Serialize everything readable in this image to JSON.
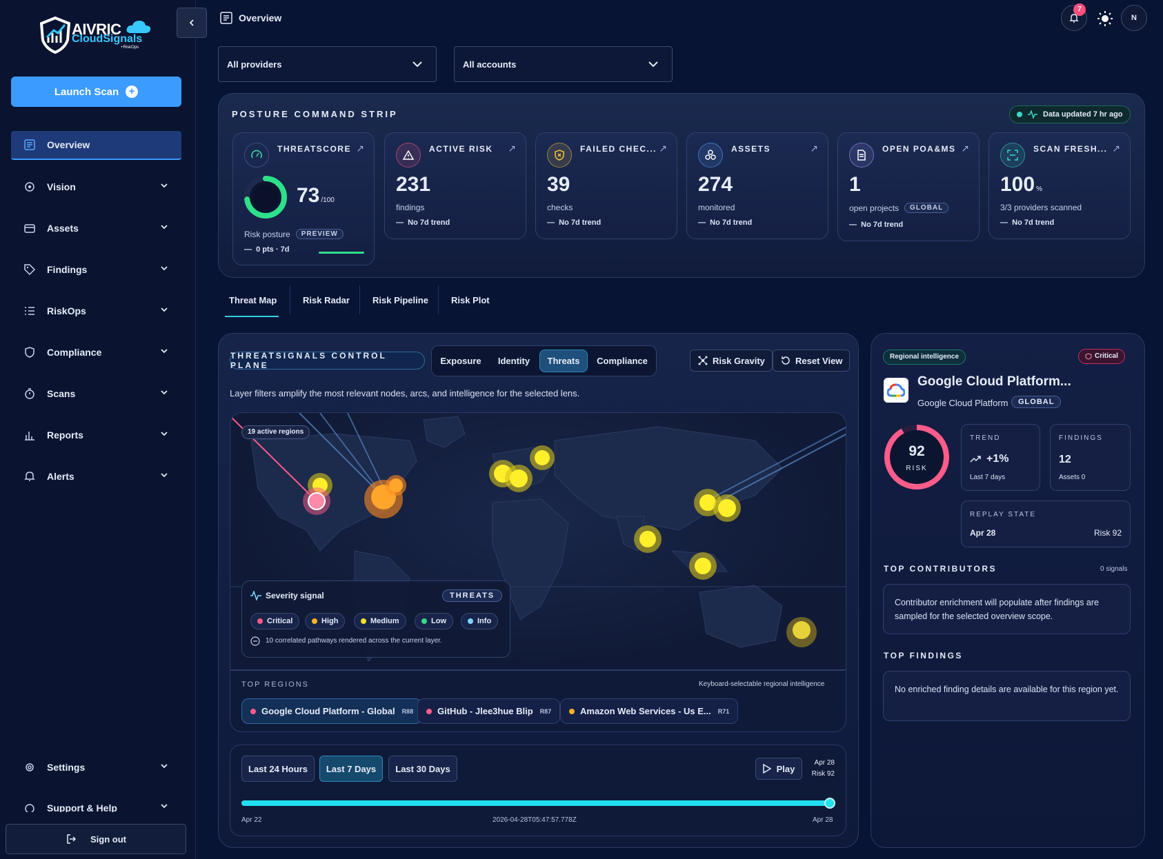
{
  "brand": {
    "name_top": "AIVRIC",
    "name_bottom": "CloudSignals",
    "tagline": "+RiskOps"
  },
  "sidebar": {
    "launch_label": "Launch Scan",
    "items": [
      {
        "label": "Overview",
        "icon": "overview-icon",
        "active": true
      },
      {
        "label": "Vision",
        "icon": "vision-icon"
      },
      {
        "label": "Assets",
        "icon": "assets-icon"
      },
      {
        "label": "Findings",
        "icon": "tag-icon"
      },
      {
        "label": "RiskOps",
        "icon": "list-icon"
      },
      {
        "label": "Compliance",
        "icon": "shield-icon"
      },
      {
        "label": "Scans",
        "icon": "timer-icon"
      },
      {
        "label": "Reports",
        "icon": "bar-chart-icon"
      },
      {
        "label": "Alerts",
        "icon": "bell-icon"
      }
    ],
    "settings_label": "Settings",
    "support_label": "Support & Help",
    "signout_label": "Sign out"
  },
  "header": {
    "page_title": "Overview",
    "notification_count": "7",
    "avatar_initial": "N"
  },
  "filters": {
    "providers": "All providers",
    "accounts": "All accounts"
  },
  "posture": {
    "title": "POSTURE COMMAND STRIP",
    "updated": "Data updated 7 hr ago",
    "threatscore": {
      "label": "THREATSCORE",
      "value": "73",
      "unit": "/100",
      "sub": "Risk posture",
      "pill": "PREVIEW",
      "trend": "0 pts · 7d",
      "score": 73
    },
    "cards": [
      {
        "label": "ACTIVE RISK",
        "value": "231",
        "sub": "findings",
        "trend": "No 7d trend",
        "icon": "warning-icon",
        "accent": "#ff5c8a"
      },
      {
        "label": "FAILED CHEC...",
        "value": "39",
        "sub": "checks",
        "trend": "No 7d trend",
        "icon": "shield-x-icon",
        "accent": "#f3c43a"
      },
      {
        "label": "ASSETS",
        "value": "274",
        "sub": "monitored",
        "trend": "No 7d trend",
        "icon": "cubes-icon",
        "accent": "#5aa8ff"
      },
      {
        "label": "OPEN POA&MS",
        "value": "1",
        "sub": "open projects",
        "pill": "GLOBAL",
        "trend": "No 7d trend",
        "icon": "document-icon",
        "accent": "#a59bff"
      },
      {
        "label": "SCAN FRESH...",
        "value": "100",
        "unit": "%",
        "sub": "3/3 providers scanned",
        "trend": "No 7d trend",
        "icon": "scan-icon",
        "accent": "#3ad6c8"
      }
    ]
  },
  "tabs": [
    "Threat Map",
    "Risk Radar",
    "Risk Pipeline",
    "Risk Plot"
  ],
  "threatmap": {
    "control_plane": "THREATSIGNALS CONTROL PLANE",
    "lenses": [
      "Exposure",
      "Identity",
      "Threats",
      "Compliance"
    ],
    "active_lens": "Threats",
    "risk_gravity": "Risk Gravity",
    "reset_view": "Reset View",
    "description": "Layer filters amplify the most relevant nodes, arcs, and intelligence for the selected lens.",
    "active_regions": "19 active regions",
    "severity": {
      "title": "Severity signal",
      "pill": "THREATS",
      "levels": [
        {
          "label": "Critical",
          "color": "#ff5c8a"
        },
        {
          "label": "High",
          "color": "#ffb020"
        },
        {
          "label": "Medium",
          "color": "#f5e02a"
        },
        {
          "label": "Low",
          "color": "#3ad68a"
        },
        {
          "label": "Info",
          "color": "#7fd4ff"
        }
      ],
      "footnote": "10 correlated pathways rendered across the current layer."
    },
    "top_regions_label": "TOP REGIONS",
    "keyboard_note": "Keyboard-selectable regional intelligence",
    "regions": [
      {
        "name": "Google Cloud Platform - Global",
        "risk": "R88",
        "color": "#ff5c8a"
      },
      {
        "name": "GitHub - Jlee3hue Blip",
        "risk": "R87",
        "color": "#ff5c8a"
      },
      {
        "name": "Amazon Web Services - Us E...",
        "risk": "R71",
        "color": "#ffb020"
      }
    ]
  },
  "timeline": {
    "ranges": [
      "Last 24 Hours",
      "Last 7 Days",
      "Last 30 Days"
    ],
    "active_range": "Last 7 Days",
    "play_label": "Play",
    "current_date": "Apr 28",
    "current_risk": "Risk 92",
    "start": "Apr 22",
    "timestamp": "2026-04-28T05:47:57.778Z",
    "end": "Apr 28",
    "progress": 1.0
  },
  "regional": {
    "pill": "Regional intelligence",
    "severity": "Critical",
    "title": "Google Cloud Platform...",
    "provider": "Google Cloud Platform",
    "scope": "GLOBAL",
    "risk_value": "92",
    "risk_label": "RISK",
    "trend_label": "TREND",
    "trend_value": "+1%",
    "trend_sub": "Last 7 days",
    "findings_label": "FINDINGS",
    "findings_value": "12",
    "findings_sub": "Assets 0",
    "replay_label": "REPLAY STATE",
    "replay_date": "Apr 28",
    "replay_risk": "Risk 92",
    "contributors_title": "TOP CONTRIBUTORS",
    "contributors_count": "0 signals",
    "contributors_note": "Contributor enrichment will populate after findings are sampled for the selected overview scope.",
    "findings_title": "TOP FINDINGS",
    "findings_note": "No enriched finding details are available for this region yet."
  }
}
